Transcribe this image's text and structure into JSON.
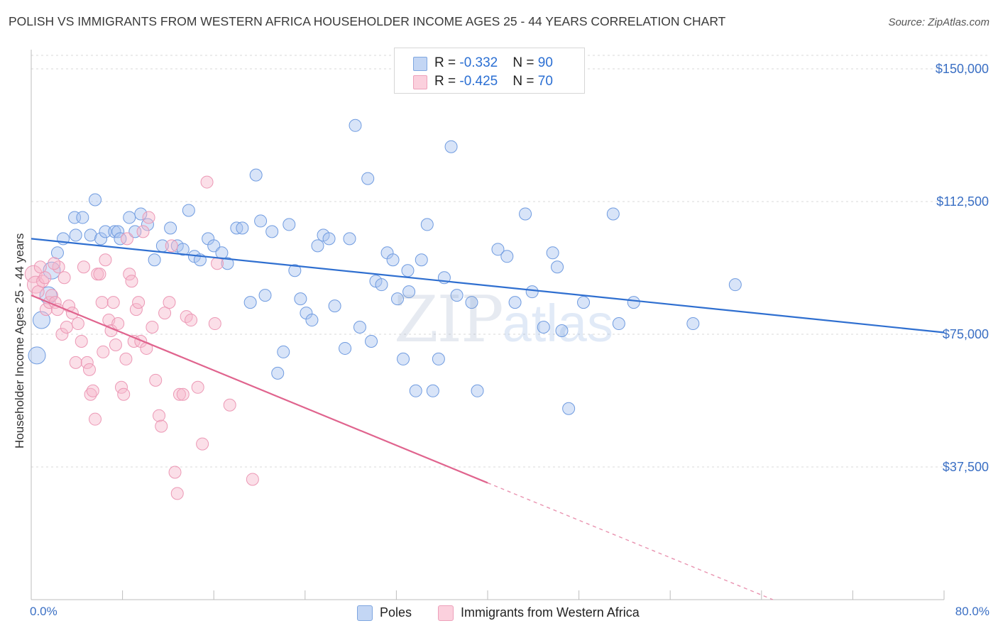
{
  "header": {
    "title": "POLISH VS IMMIGRANTS FROM WESTERN AFRICA HOUSEHOLDER INCOME AGES 25 - 44 YEARS CORRELATION CHART",
    "source": "Source: ZipAtlas.com"
  },
  "watermark": {
    "zip": "ZIP",
    "atlas": "atlas"
  },
  "legend": {
    "rows": [
      {
        "r_label": "R = ",
        "r_value": "-0.332",
        "n_label": "N = ",
        "n_value": "90",
        "color": "#a9c4ef"
      },
      {
        "r_label": "R = ",
        "r_value": "-0.425",
        "n_label": "N = ",
        "n_value": "70",
        "color": "#f6b8cb"
      }
    ]
  },
  "bottom_legend": {
    "items": [
      {
        "label": "Poles",
        "color": "#a9c4ef"
      },
      {
        "label": "Immigrants from Western Africa",
        "color": "#f6b8cb"
      }
    ]
  },
  "chart_data": {
    "type": "scatter",
    "title": "POLISH VS IMMIGRANTS FROM WESTERN AFRICA HOUSEHOLDER INCOME AGES 25 - 44 YEARS CORRELATION CHART",
    "xlabel": "",
    "ylabel": "Householder Income Ages 25 - 44 years",
    "x_tick_labels": [
      "0.0%",
      "80.0%"
    ],
    "y_tick_labels": [
      "$37,500",
      "$75,000",
      "$112,500",
      "$150,000"
    ],
    "y_ticks": [
      37500,
      75000,
      112500,
      150000
    ],
    "xlim": [
      0,
      80
    ],
    "ylim": [
      0,
      155000
    ],
    "grid": true,
    "legend_position": "top-center",
    "colors": {
      "poles": "#3a78d4",
      "poles_fill": "#a9c4ef",
      "waf": "#e0648e",
      "waf_fill": "#f6b8cb"
    },
    "series": [
      {
        "name": "Poles",
        "R": -0.332,
        "N": 90,
        "trend": {
          "x0": 0,
          "y0": 102000,
          "x1": 80,
          "y1": 75500
        },
        "points": [
          [
            0.5,
            69000
          ],
          [
            0.9,
            79000
          ],
          [
            1.5,
            86000
          ],
          [
            1.8,
            93000
          ],
          [
            2.3,
            98000
          ],
          [
            2.8,
            102000
          ],
          [
            3.8,
            108000
          ],
          [
            4.5,
            108000
          ],
          [
            3.9,
            103000
          ],
          [
            5.6,
            113000
          ],
          [
            5.2,
            103000
          ],
          [
            6.1,
            102000
          ],
          [
            6.5,
            104000
          ],
          [
            7.3,
            104000
          ],
          [
            7.6,
            104000
          ],
          [
            7.8,
            102000
          ],
          [
            8.6,
            108000
          ],
          [
            9.1,
            104000
          ],
          [
            9.6,
            109000
          ],
          [
            10.2,
            106000
          ],
          [
            10.8,
            96000
          ],
          [
            11.5,
            100000
          ],
          [
            12.2,
            105000
          ],
          [
            12.8,
            100000
          ],
          [
            13.3,
            99000
          ],
          [
            13.8,
            110000
          ],
          [
            14.3,
            97000
          ],
          [
            14.8,
            96000
          ],
          [
            15.5,
            102000
          ],
          [
            16.0,
            100000
          ],
          [
            16.7,
            98000
          ],
          [
            17.2,
            95000
          ],
          [
            18.0,
            105000
          ],
          [
            18.5,
            105000
          ],
          [
            19.2,
            84000
          ],
          [
            19.7,
            120000
          ],
          [
            20.1,
            107000
          ],
          [
            20.5,
            86000
          ],
          [
            21.1,
            104000
          ],
          [
            21.6,
            64000
          ],
          [
            22.1,
            70000
          ],
          [
            22.6,
            106000
          ],
          [
            23.1,
            93000
          ],
          [
            23.6,
            85000
          ],
          [
            24.1,
            81000
          ],
          [
            24.6,
            79000
          ],
          [
            25.1,
            100000
          ],
          [
            25.6,
            103000
          ],
          [
            26.1,
            102000
          ],
          [
            26.6,
            83000
          ],
          [
            27.5,
            71000
          ],
          [
            27.9,
            102000
          ],
          [
            28.4,
            134000
          ],
          [
            28.8,
            77000
          ],
          [
            29.5,
            119000
          ],
          [
            29.8,
            73000
          ],
          [
            30.2,
            90000
          ],
          [
            30.7,
            89000
          ],
          [
            31.2,
            98000
          ],
          [
            31.7,
            96000
          ],
          [
            32.1,
            85000
          ],
          [
            32.6,
            68000
          ],
          [
            33.1,
            87000
          ],
          [
            33.7,
            59000
          ],
          [
            34.2,
            96000
          ],
          [
            34.7,
            106000
          ],
          [
            35.2,
            59000
          ],
          [
            35.7,
            68000
          ],
          [
            36.2,
            91000
          ],
          [
            36.8,
            128000
          ],
          [
            37.3,
            86000
          ],
          [
            38.6,
            84000
          ],
          [
            39.1,
            59000
          ],
          [
            40.9,
            99000
          ],
          [
            41.7,
            97000
          ],
          [
            42.4,
            84000
          ],
          [
            43.3,
            109000
          ],
          [
            43.9,
            87000
          ],
          [
            44.9,
            77000
          ],
          [
            45.7,
            98000
          ],
          [
            46.1,
            94000
          ],
          [
            47.1,
            54000
          ],
          [
            48.4,
            84000
          ],
          [
            51.0,
            109000
          ],
          [
            51.5,
            78000
          ],
          [
            52.8,
            84000
          ],
          [
            58.0,
            78000
          ],
          [
            61.7,
            89000
          ],
          [
            46.5,
            76000
          ],
          [
            33.0,
            93000
          ]
        ]
      },
      {
        "name": "Immigrants from Western Africa",
        "R": -0.425,
        "N": 70,
        "trend": {
          "x0": 0,
          "y0": 86000,
          "x1": 40,
          "y1": 33000,
          "dash_x1": 65,
          "dash_y1": 0
        },
        "points": [
          [
            0.2,
            92000
          ],
          [
            0.4,
            89000
          ],
          [
            0.6,
            87000
          ],
          [
            0.8,
            94000
          ],
          [
            1.0,
            90000
          ],
          [
            1.2,
            91000
          ],
          [
            1.3,
            82000
          ],
          [
            1.6,
            84000
          ],
          [
            1.8,
            86000
          ],
          [
            2.1,
            84000
          ],
          [
            2.3,
            82000
          ],
          [
            2.4,
            94000
          ],
          [
            2.7,
            75000
          ],
          [
            2.9,
            91000
          ],
          [
            3.1,
            77000
          ],
          [
            3.3,
            83000
          ],
          [
            3.6,
            81000
          ],
          [
            3.9,
            67000
          ],
          [
            4.1,
            78000
          ],
          [
            4.4,
            73000
          ],
          [
            4.6,
            94000
          ],
          [
            4.9,
            67000
          ],
          [
            5.1,
            65000
          ],
          [
            5.2,
            58000
          ],
          [
            5.4,
            59000
          ],
          [
            5.6,
            51000
          ],
          [
            5.8,
            92000
          ],
          [
            6.0,
            92000
          ],
          [
            6.2,
            84000
          ],
          [
            6.5,
            96000
          ],
          [
            6.8,
            79000
          ],
          [
            7.0,
            76000
          ],
          [
            7.2,
            84000
          ],
          [
            7.4,
            72000
          ],
          [
            7.6,
            78000
          ],
          [
            7.9,
            60000
          ],
          [
            8.1,
            58000
          ],
          [
            8.3,
            68000
          ],
          [
            8.6,
            92000
          ],
          [
            8.8,
            90000
          ],
          [
            9.0,
            73000
          ],
          [
            9.2,
            82000
          ],
          [
            9.4,
            84000
          ],
          [
            9.6,
            73000
          ],
          [
            9.8,
            104000
          ],
          [
            10.1,
            71000
          ],
          [
            10.3,
            108000
          ],
          [
            10.6,
            77000
          ],
          [
            10.9,
            62000
          ],
          [
            11.2,
            52000
          ],
          [
            11.4,
            49000
          ],
          [
            11.7,
            81000
          ],
          [
            12.1,
            84000
          ],
          [
            12.3,
            100000
          ],
          [
            12.6,
            36000
          ],
          [
            12.8,
            30000
          ],
          [
            13.0,
            58000
          ],
          [
            13.3,
            58000
          ],
          [
            13.6,
            80000
          ],
          [
            14.0,
            79000
          ],
          [
            14.6,
            60000
          ],
          [
            15.0,
            44000
          ],
          [
            15.4,
            118000
          ],
          [
            16.1,
            78000
          ],
          [
            16.3,
            95000
          ],
          [
            17.4,
            55000
          ],
          [
            19.4,
            34000
          ],
          [
            8.4,
            102000
          ],
          [
            6.3,
            70000
          ],
          [
            2.0,
            95000
          ]
        ]
      }
    ]
  }
}
